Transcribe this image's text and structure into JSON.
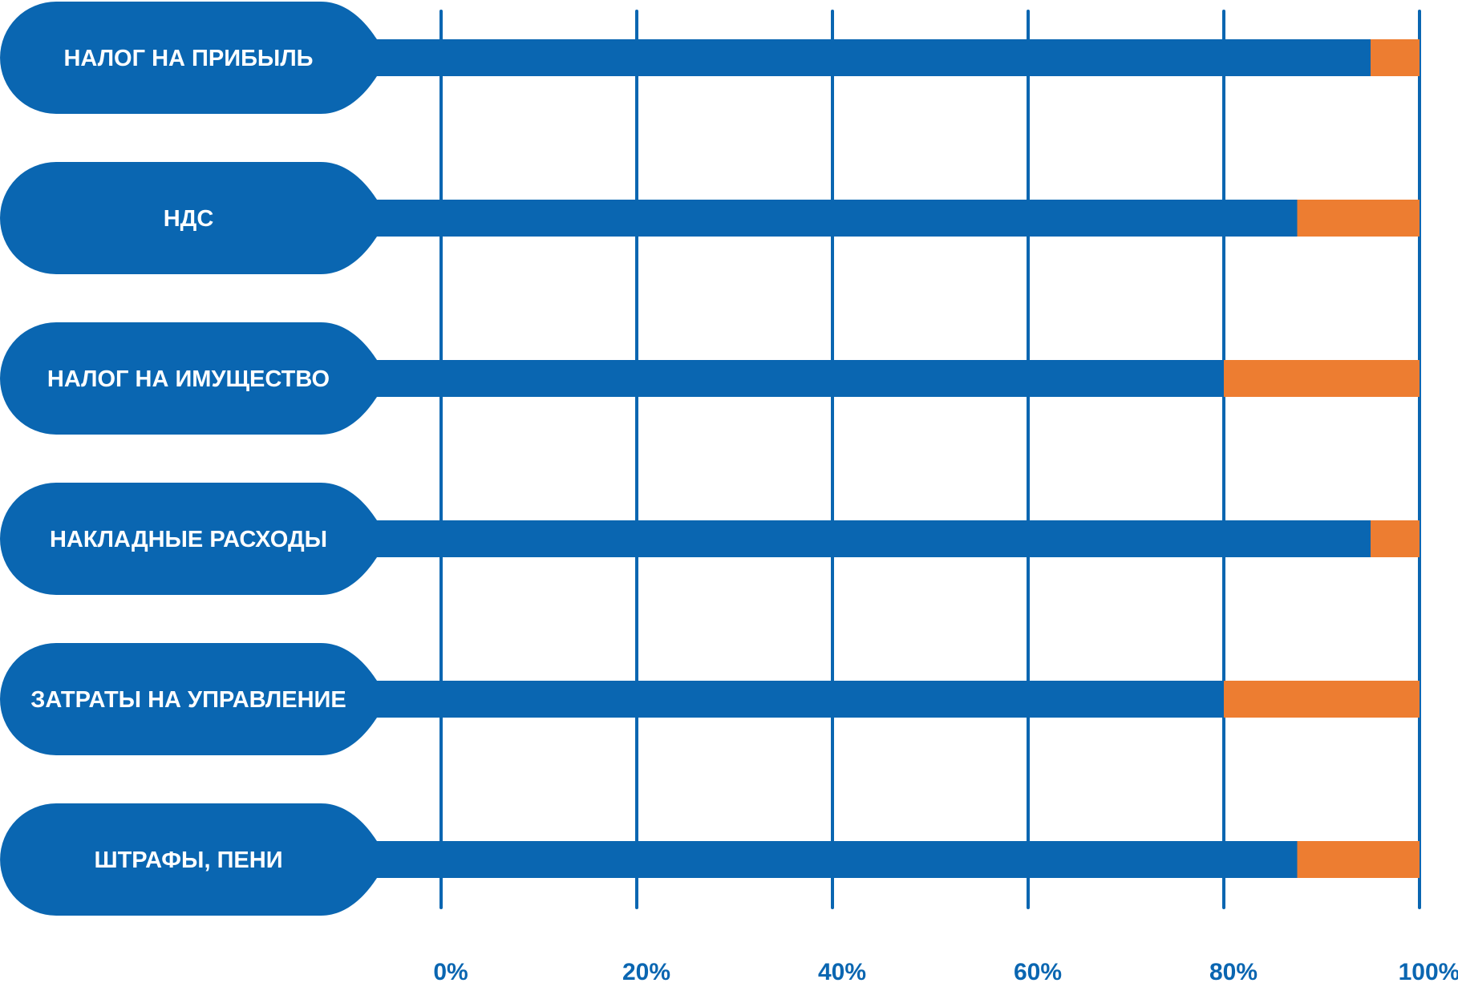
{
  "chart_data": {
    "type": "bar",
    "orientation": "horizontal",
    "stacked": true,
    "categories": [
      "НАЛОГ НА ПРИБЫЛЬ",
      "НДС",
      "НАЛОГ НА ИМУЩЕСТВО",
      "НАКЛАДНЫЕ РАСХОДЫ",
      "ЗАТРАТЫ НА УПРАВЛЕНИЕ",
      "ШТРАФЫ, ПЕНИ"
    ],
    "series": [
      {
        "values": [
          95,
          87.5,
          80,
          95,
          80,
          87.5
        ],
        "color": "#0a66b1"
      },
      {
        "values": [
          5,
          12.5,
          20,
          5,
          20,
          12.5
        ],
        "color": "#ed7d31"
      }
    ],
    "xlim": [
      0,
      100
    ],
    "xticks": [
      0,
      20,
      40,
      60,
      80,
      100
    ],
    "xtick_labels": [
      "0%",
      "20%",
      "40%",
      "60%",
      "80%",
      "100%"
    ],
    "grid": "vertical",
    "title": "",
    "xlabel": "",
    "ylabel": "",
    "colors": {
      "primary": "#0a66b1",
      "accent": "#ed7d31",
      "label_text": "#ffffff"
    }
  }
}
